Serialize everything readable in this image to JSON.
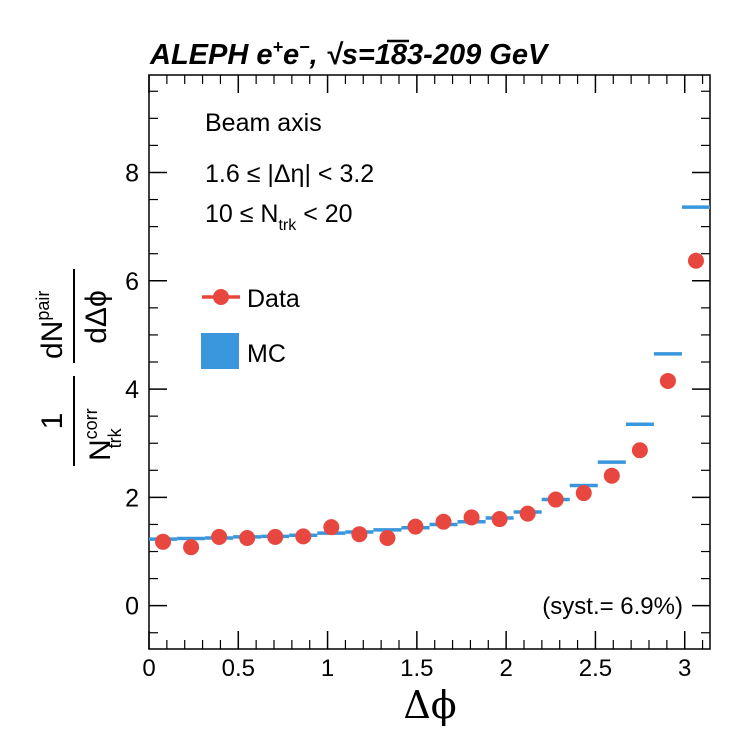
{
  "chart_data": {
    "type": "scatter",
    "title": {
      "experiment": "ALEPH",
      "e_plus": "e",
      "plus_sup": "+",
      "e_minus": "e",
      "minus_sup": "−",
      "comma": ",",
      "sqrt": "√",
      "energy": "s=183-209 GeV"
    },
    "xlabel": "Δϕ",
    "ylabel": {
      "numerator": "1",
      "denominator_main": "N",
      "denominator_sup": "corr",
      "denominator_sub": "trk",
      "fraction_num_main": "dN",
      "fraction_num_sup": "pair",
      "fraction_den": "dΔϕ"
    },
    "xlim": [
      0,
      3.1416
    ],
    "ylim": [
      -0.8,
      9.8
    ],
    "xticks": [
      0,
      0.5,
      1,
      1.5,
      2,
      2.5,
      3
    ],
    "xtick_labels": [
      "0",
      "0.5",
      "1",
      "1.5",
      "2",
      "2.5",
      "3"
    ],
    "yticks": [
      0,
      2,
      4,
      6,
      8
    ],
    "ytick_labels": [
      "0",
      "2",
      "4",
      "6",
      "8"
    ],
    "annotations": {
      "frame": "Beam axis",
      "eta_cut": "1.6 ≤ |Δη| < 3.2",
      "ntrk_cut_prefix": "10 ≤ N",
      "ntrk_cut_sub": "trk",
      "ntrk_cut_suffix": " < 20",
      "syst": "(syst.= 6.9%)"
    },
    "legend": {
      "placement": "upper-left",
      "entries": [
        {
          "name": "Data",
          "style": "marker-line"
        },
        {
          "name": "MC",
          "style": "filled-box"
        }
      ]
    },
    "colors": {
      "data": "#e8473f",
      "mc": "#3a97dd",
      "axis": "#000000"
    },
    "bins": 20,
    "series": [
      {
        "name": "Data",
        "x": [
          0.0785,
          0.2356,
          0.3927,
          0.5498,
          0.7069,
          0.8639,
          1.021,
          1.1781,
          1.3352,
          1.4923,
          1.6493,
          1.8064,
          1.9635,
          2.1206,
          2.2777,
          2.4347,
          2.5918,
          2.7489,
          2.906,
          3.0631
        ],
        "values": [
          1.18,
          1.08,
          1.27,
          1.25,
          1.27,
          1.28,
          1.45,
          1.32,
          1.25,
          1.46,
          1.55,
          1.63,
          1.6,
          1.7,
          1.96,
          2.08,
          2.4,
          2.87,
          4.15,
          6.37
        ]
      },
      {
        "name": "MC",
        "x": [
          0.0785,
          0.2356,
          0.3927,
          0.5498,
          0.7069,
          0.8639,
          1.021,
          1.1781,
          1.3352,
          1.4923,
          1.6493,
          1.8064,
          1.9635,
          2.1206,
          2.2777,
          2.4347,
          2.5918,
          2.7489,
          2.906,
          3.0631
        ],
        "values": [
          1.23,
          1.24,
          1.25,
          1.27,
          1.28,
          1.3,
          1.34,
          1.36,
          1.4,
          1.44,
          1.5,
          1.55,
          1.62,
          1.73,
          1.96,
          2.22,
          2.65,
          3.35,
          4.65,
          7.36
        ]
      }
    ]
  }
}
